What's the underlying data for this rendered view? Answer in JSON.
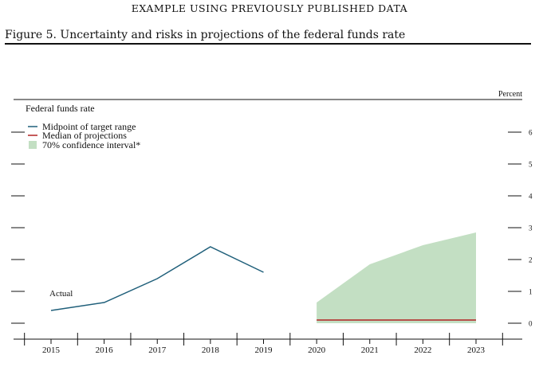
{
  "header": {
    "text": "EXAMPLE USING PREVIOUSLY PUBLISHED DATA"
  },
  "figure": {
    "title": "Figure 5. Uncertainty and risks in projections of the federal funds rate"
  },
  "chart_data": {
    "type": "line",
    "title": "Federal funds rate",
    "unit_label": "Percent",
    "x": [
      2015,
      2016,
      2017,
      2018,
      2019,
      2020,
      2021,
      2022,
      2023
    ],
    "ylim": [
      0,
      6
    ],
    "yticks": [
      0,
      1,
      2,
      3,
      4,
      5,
      6
    ],
    "series": [
      {
        "name": "Midpoint of target range",
        "color": "#1f5f7a",
        "x": [
          2015,
          2016,
          2017,
          2018,
          2019
        ],
        "values": [
          0.4,
          0.65,
          1.4,
          2.4,
          1.6
        ]
      },
      {
        "name": "Median of projections",
        "color": "#b22222",
        "x": [
          2020,
          2021,
          2022,
          2023
        ],
        "values": [
          0.1,
          0.1,
          0.1,
          0.1
        ]
      },
      {
        "name": "70% confidence interval*",
        "color": "#c3dfc3",
        "kind": "band",
        "x": [
          2020,
          2021,
          2022,
          2023
        ],
        "lower": [
          0.0,
          0.0,
          0.0,
          0.0
        ],
        "upper": [
          0.65,
          1.85,
          2.45,
          2.85
        ]
      }
    ],
    "annotations": [
      {
        "text": "Actual",
        "x": 2015.2,
        "y": 1.0
      }
    ],
    "legend_position": "top-left"
  }
}
